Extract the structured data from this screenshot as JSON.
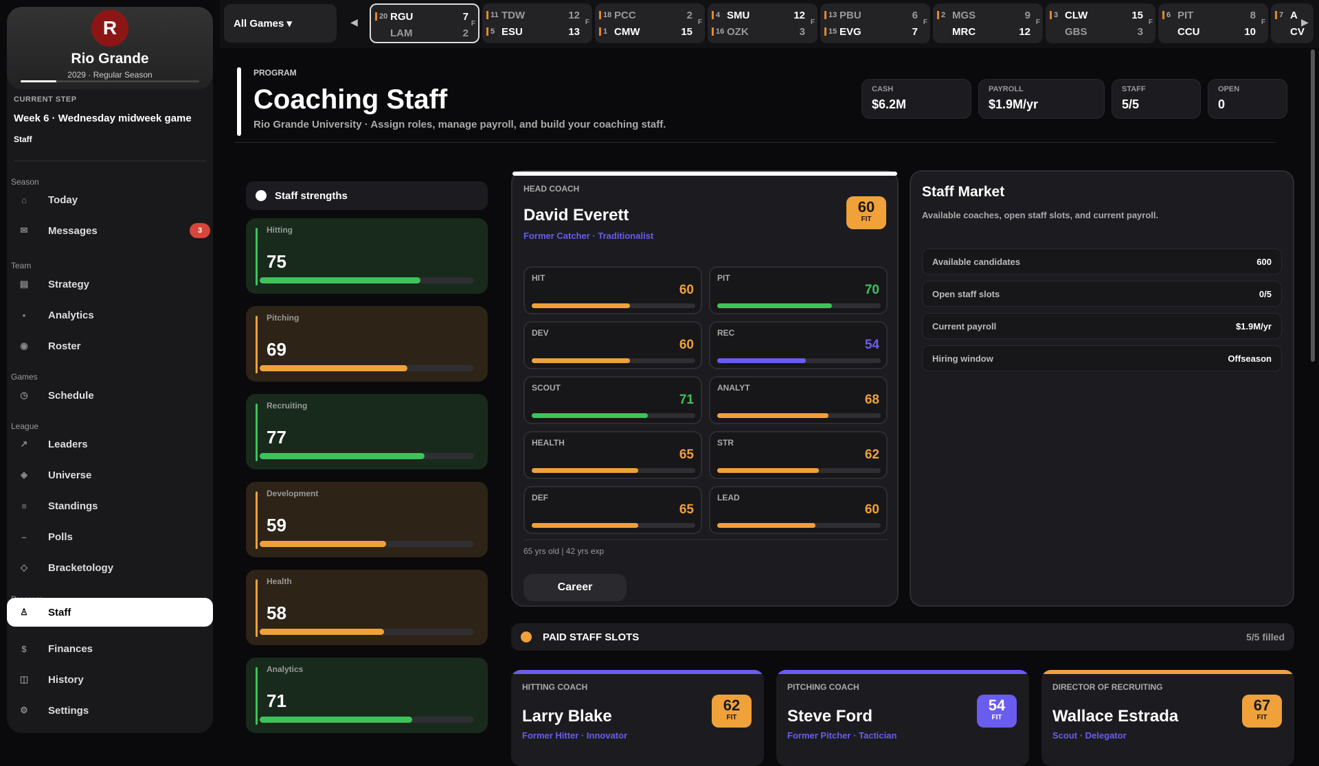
{
  "sidebar": {
    "team_initial": "R",
    "team_name": "Rio Grande",
    "season_meta": "2029 · Regular Season",
    "season_progress": 0.2,
    "current_step_label": "CURRENT STEP",
    "current_step": "Week 6 · Wednesday midweek game",
    "current_sub": "Staff",
    "groups": {
      "season": "Season",
      "team": "Team",
      "games": "Games",
      "league": "League",
      "program": "Program"
    },
    "items": {
      "today": "Today",
      "messages": "Messages",
      "strategy": "Strategy",
      "analytics": "Analytics",
      "roster": "Roster",
      "schedule": "Schedule",
      "leaders": "Leaders",
      "universe": "Universe",
      "standings": "Standings",
      "polls": "Polls",
      "bracketology": "Bracketology",
      "staff": "Staff",
      "finances": "Finances",
      "history": "History",
      "settings": "Settings"
    },
    "messages_badge": "3"
  },
  "scores": {
    "filter": "All Games ▾",
    "prev": "◀",
    "next": "▶",
    "games": [
      {
        "r1": "20",
        "t1": "RGU",
        "s1": "7",
        "r2": "",
        "t2": "LAM",
        "s2": "2",
        "status": "F"
      },
      {
        "r1": "11",
        "t1": "TDW",
        "s1": "12",
        "r2": "5",
        "t2": "ESU",
        "s2": "13",
        "status": "F"
      },
      {
        "r1": "18",
        "t1": "PCC",
        "s1": "2",
        "r2": "1",
        "t2": "CMW",
        "s2": "15",
        "status": "F"
      },
      {
        "r1": "4",
        "t1": "SMU",
        "s1": "12",
        "r2": "16",
        "t2": "OZK",
        "s2": "3",
        "status": "F"
      },
      {
        "r1": "13",
        "t1": "PBU",
        "s1": "6",
        "r2": "15",
        "t2": "EVG",
        "s2": "7",
        "status": "F"
      },
      {
        "r1": "2",
        "t1": "MGS",
        "s1": "9",
        "r2": "",
        "t2": "MRC",
        "s2": "12",
        "status": "F"
      },
      {
        "r1": "3",
        "t1": "CLW",
        "s1": "15",
        "r2": "",
        "t2": "GBS",
        "s2": "3",
        "status": "F"
      },
      {
        "r1": "6",
        "t1": "PIT",
        "s1": "8",
        "r2": "",
        "t2": "CCU",
        "s2": "10",
        "status": "F"
      },
      {
        "r1": "7",
        "t1": "A",
        "s1": "",
        "r2": "",
        "t2": "CV",
        "s2": "",
        "status": ""
      }
    ]
  },
  "header": {
    "kicker": "PROGRAM",
    "title": "Coaching Staff",
    "subtitle": "Rio Grande University · Assign roles, manage payroll, and build your coaching staff."
  },
  "kpis": [
    {
      "label": "CASH",
      "value": "$6.2M"
    },
    {
      "label": "PAYROLL",
      "value": "$1.9M/yr"
    },
    {
      "label": "STAFF",
      "value": "5/5"
    },
    {
      "label": "OPEN",
      "value": "0"
    }
  ],
  "strengths": {
    "title": "Staff strengths",
    "items": [
      {
        "label": "Hitting",
        "value": "75",
        "pct": 75,
        "tone": "g"
      },
      {
        "label": "Pitching",
        "value": "69",
        "pct": 69,
        "tone": "o"
      },
      {
        "label": "Recruiting",
        "value": "77",
        "pct": 77,
        "tone": "g"
      },
      {
        "label": "Development",
        "value": "59",
        "pct": 59,
        "tone": "o"
      },
      {
        "label": "Health",
        "value": "58",
        "pct": 58,
        "tone": "o"
      },
      {
        "label": "Analytics",
        "value": "71",
        "pct": 71,
        "tone": "g"
      }
    ]
  },
  "head_coach": {
    "kicker": "HEAD COACH",
    "name": "David Everett",
    "meta": "Former Catcher · Traditionalist",
    "fit": "60",
    "fit_label": "FIT",
    "attrs": [
      {
        "label": "HIT",
        "value": "60",
        "pct": 60,
        "color": "#f0a13a"
      },
      {
        "label": "PIT",
        "value": "70",
        "pct": 70,
        "color": "#3ec35a"
      },
      {
        "label": "DEV",
        "value": "60",
        "pct": 60,
        "color": "#f0a13a"
      },
      {
        "label": "REC",
        "value": "54",
        "pct": 54,
        "color": "#6b5cf0"
      },
      {
        "label": "SCOUT",
        "value": "71",
        "pct": 71,
        "color": "#3ec35a"
      },
      {
        "label": "ANALYT",
        "value": "68",
        "pct": 68,
        "color": "#f0a13a"
      },
      {
        "label": "HEALTH",
        "value": "65",
        "pct": 65,
        "color": "#f0a13a"
      },
      {
        "label": "STR",
        "value": "62",
        "pct": 62,
        "color": "#f0a13a"
      },
      {
        "label": "DEF",
        "value": "65",
        "pct": 65,
        "color": "#f0a13a"
      },
      {
        "label": "LEAD",
        "value": "60",
        "pct": 60,
        "color": "#f0a13a"
      }
    ],
    "age_exp": "65 yrs old | 42 yrs exp",
    "career_button": "Career"
  },
  "market": {
    "title": "Staff Market",
    "subtitle": "Available coaches, open staff slots, and current payroll.",
    "rows": [
      {
        "label": "Available candidates",
        "value": "600"
      },
      {
        "label": "Open staff slots",
        "value": "0/5"
      },
      {
        "label": "Current payroll",
        "value": "$1.9M/yr"
      },
      {
        "label": "Hiring window",
        "value": "Offseason"
      }
    ]
  },
  "paid": {
    "title": "PAID STAFF SLOTS",
    "filled": "5/5 filled"
  },
  "slots": [
    {
      "role": "HITTING COACH",
      "name": "Larry Blake",
      "meta": "Former Hitter · Innovator",
      "fit": "62",
      "fit_label": "FIT",
      "accent": "#6b5cf0",
      "fit_color": "#f0a13a"
    },
    {
      "role": "PITCHING COACH",
      "name": "Steve Ford",
      "meta": "Former Pitcher · Tactician",
      "fit": "54",
      "fit_label": "FIT",
      "accent": "#6b5cf0",
      "fit_color": "#6b5cf0"
    },
    {
      "role": "DIRECTOR OF RECRUITING",
      "name": "Wallace Estrada",
      "meta": "Scout · Delegator",
      "fit": "67",
      "fit_label": "FIT",
      "accent": "#f0a13a",
      "fit_color": "#f0a13a"
    }
  ]
}
